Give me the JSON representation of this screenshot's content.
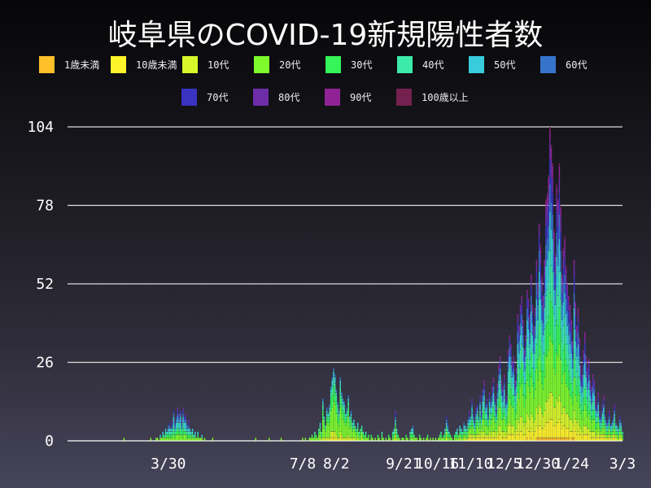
{
  "chart_data": {
    "type": "bar",
    "stacked": true,
    "title": "岐阜県のCOVID-19新規陽性者数",
    "xlabel": "",
    "ylabel": "",
    "xlim": [
      "2020-01-15",
      "2021-03-03"
    ],
    "ylim": [
      0,
      104
    ],
    "yticks": [
      0,
      26,
      52,
      78,
      104
    ],
    "xticks": [
      {
        "date": "2020-03-30",
        "label": "3/30"
      },
      {
        "date": "2020-07-08",
        "label": "7/8"
      },
      {
        "date": "2020-08-02",
        "label": "8/2"
      },
      {
        "date": "2020-09-21",
        "label": "9/21"
      },
      {
        "date": "2020-10-16",
        "label": "10/16"
      },
      {
        "date": "2020-11-10",
        "label": "11/10"
      },
      {
        "date": "2020-12-05",
        "label": "12/5"
      },
      {
        "date": "2020-12-30",
        "label": "12/30"
      },
      {
        "date": "2021-01-24",
        "label": "1/24"
      },
      {
        "date": "2021-03-03",
        "label": "3/3"
      }
    ],
    "grid": "horizontal",
    "legend_position": "top",
    "series": [
      {
        "name": "1歳未満",
        "color": "#FFC02A"
      },
      {
        "name": "10歳未満",
        "color": "#FFF42A"
      },
      {
        "name": "10代",
        "color": "#D8F72A"
      },
      {
        "name": "20代",
        "color": "#7DF92C"
      },
      {
        "name": "30代",
        "color": "#35F558"
      },
      {
        "name": "40代",
        "color": "#3DEBA8"
      },
      {
        "name": "50代",
        "color": "#38CCDD"
      },
      {
        "name": "60代",
        "color": "#3674CC"
      },
      {
        "name": "70代",
        "color": "#3A32C0"
      },
      {
        "name": "80代",
        "color": "#6D2DA8"
      },
      {
        "name": "90代",
        "color": "#8F2396"
      },
      {
        "name": "100歳以上",
        "color": "#75214F"
      }
    ],
    "daily_totals_by_month": {
      "2020-02": [
        0,
        0,
        0,
        0,
        0,
        0,
        0,
        0,
        0,
        0,
        0,
        0,
        0,
        0,
        0,
        0,
        0,
        0,
        0,
        0,
        0,
        0,
        0,
        0,
        0,
        1,
        0,
        0,
        0
      ],
      "2020-03": [
        0,
        0,
        0,
        0,
        0,
        0,
        0,
        0,
        0,
        0,
        0,
        0,
        0,
        0,
        0,
        0,
        1,
        0,
        0,
        0,
        1,
        1,
        0,
        2,
        1,
        3,
        2,
        4,
        3,
        5,
        6
      ],
      "2020-04": [
        4,
        7,
        10,
        6,
        8,
        11,
        9,
        10,
        7,
        11,
        8,
        9,
        5,
        7,
        4,
        3,
        4,
        2,
        3,
        1,
        3,
        1,
        1,
        2,
        0,
        1,
        0,
        0,
        0,
        0
      ],
      "2020-05": [
        0,
        1,
        0,
        0,
        0,
        0,
        0,
        0,
        0,
        0,
        0,
        0,
        0,
        0,
        0,
        0,
        0,
        0,
        0,
        0,
        0,
        0,
        0,
        0,
        0,
        0,
        0,
        0,
        0,
        0,
        0
      ],
      "2020-06": [
        0,
        0,
        1,
        0,
        0,
        0,
        0,
        0,
        0,
        0,
        0,
        0,
        1,
        0,
        0,
        0,
        0,
        0,
        0,
        0,
        0,
        1,
        0,
        0,
        0,
        0,
        0,
        0,
        0,
        0
      ],
      "2020-07": [
        0,
        0,
        0,
        0,
        0,
        0,
        0,
        1,
        0,
        1,
        0,
        0,
        1,
        1,
        2,
        1,
        3,
        2,
        1,
        4,
        6,
        3,
        14,
        8,
        5,
        11,
        9,
        12,
        18,
        21,
        24
      ],
      "2020-08": [
        22,
        17,
        13,
        10,
        21,
        16,
        14,
        13,
        9,
        11,
        15,
        8,
        10,
        6,
        7,
        5,
        4,
        6,
        3,
        4,
        5,
        3,
        2,
        3,
        1,
        2,
        0,
        2,
        1,
        0,
        1
      ],
      "2020-09": [
        0,
        2,
        1,
        0,
        3,
        1,
        0,
        1,
        0,
        2,
        1,
        0,
        3,
        4,
        10,
        4,
        2,
        1,
        0,
        1,
        1,
        0,
        2,
        1,
        0,
        3,
        4,
        5,
        2,
        1
      ],
      "2020-10": [
        1,
        0,
        2,
        1,
        0,
        1,
        0,
        1,
        2,
        0,
        1,
        0,
        1,
        0,
        1,
        0,
        1,
        2,
        3,
        1,
        2,
        4,
        8,
        6,
        3,
        2,
        1,
        0,
        2,
        3,
        4
      ],
      "2020-11": [
        2,
        5,
        4,
        3,
        6,
        5,
        4,
        7,
        10,
        8,
        14,
        9,
        6,
        11,
        12,
        8,
        15,
        10,
        17,
        20,
        12,
        14,
        9,
        16,
        13,
        18,
        21,
        15,
        11,
        19
      ],
      "2020-12": [
        25,
        28,
        20,
        18,
        22,
        14,
        15,
        30,
        35,
        32,
        26,
        28,
        20,
        24,
        42,
        38,
        45,
        48,
        40,
        30,
        35,
        50,
        47,
        42,
        55,
        45,
        38,
        44,
        60,
        52,
        72
      ],
      "2021-01": [
        65,
        55,
        48,
        60,
        80,
        82,
        88,
        104,
        98,
        92,
        70,
        62,
        85,
        80,
        92,
        78,
        55,
        64,
        68,
        58,
        52,
        48,
        45,
        40,
        33,
        60,
        46,
        38,
        44,
        34,
        25
      ],
      "2021-02": [
        22,
        30,
        36,
        28,
        24,
        27,
        20,
        18,
        22,
        20,
        14,
        12,
        16,
        10,
        8,
        12,
        15,
        9,
        6,
        7,
        10,
        5,
        6,
        8,
        12,
        6,
        5,
        4
      ],
      "2021-03": [
        8,
        6,
        3
      ]
    },
    "age_shares_pct_by_month": {
      "2020-02": [
        0,
        2,
        3,
        18,
        15,
        15,
        18,
        12,
        8,
        5,
        4,
        0
      ],
      "2020-03": [
        0,
        2,
        3,
        18,
        15,
        15,
        18,
        12,
        8,
        5,
        4,
        0
      ],
      "2020-04": [
        0,
        2,
        3,
        18,
        15,
        15,
        18,
        12,
        8,
        5,
        4,
        0
      ],
      "2020-05": [
        0,
        2,
        3,
        18,
        15,
        15,
        18,
        12,
        8,
        5,
        4,
        0
      ],
      "2020-06": [
        0,
        2,
        3,
        18,
        15,
        15,
        18,
        12,
        8,
        5,
        4,
        0
      ],
      "2020-07": [
        0,
        3,
        8,
        40,
        20,
        12,
        8,
        5,
        2,
        1,
        1,
        0
      ],
      "2020-08": [
        0,
        3,
        8,
        40,
        20,
        12,
        8,
        5,
        2,
        1,
        1,
        0
      ],
      "2020-09": [
        0,
        5,
        6,
        20,
        14,
        14,
        14,
        12,
        8,
        4,
        3,
        0
      ],
      "2020-10": [
        0,
        5,
        6,
        20,
        14,
        14,
        14,
        12,
        8,
        4,
        3,
        0
      ],
      "2020-11": [
        1,
        6,
        10,
        22,
        14,
        13,
        12,
        9,
        6,
        4,
        3,
        0
      ],
      "2020-12": [
        1,
        6,
        10,
        22,
        14,
        13,
        12,
        9,
        6,
        4,
        3,
        0
      ],
      "2021-01": [
        1,
        6,
        9,
        18,
        13,
        13,
        12,
        9,
        8,
        6,
        4,
        1
      ],
      "2021-02": [
        1,
        6,
        9,
        18,
        13,
        13,
        12,
        9,
        8,
        6,
        4,
        1
      ],
      "2021-03": [
        1,
        6,
        9,
        18,
        13,
        13,
        12,
        9,
        8,
        6,
        4,
        1
      ]
    }
  }
}
